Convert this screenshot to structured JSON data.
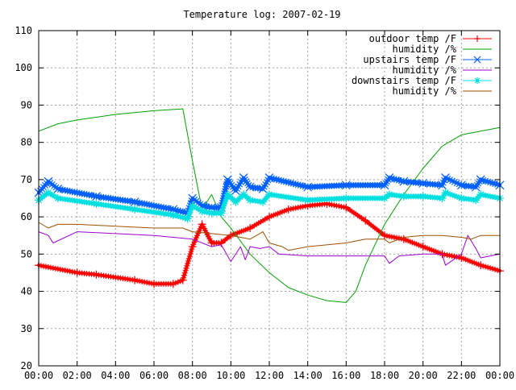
{
  "chart_data": {
    "type": "line",
    "title": "Temperature log: 2007-02-19",
    "xlabel": "",
    "ylabel": "",
    "x_range_hours": [
      0,
      24
    ],
    "xlim": [
      "00:00",
      "00:00"
    ],
    "ylim": [
      20,
      110
    ],
    "grid": true,
    "legend_position": "top-right",
    "x_ticks": [
      "00:00",
      "02:00",
      "04:00",
      "06:00",
      "08:00",
      "10:00",
      "12:00",
      "14:00",
      "16:00",
      "18:00",
      "20:00",
      "22:00",
      "00:00"
    ],
    "y_ticks": [
      20,
      30,
      40,
      50,
      60,
      70,
      80,
      90,
      100,
      110
    ],
    "series": [
      {
        "name": "outdoor temp /F",
        "color": "#ff0000",
        "marker": "plus",
        "x": [
          "00:00",
          "02:00",
          "03:00",
          "05:00",
          "06:00",
          "07:00",
          "07:30",
          "08:00",
          "08:30",
          "09:00",
          "09:30",
          "10:00",
          "11:00",
          "12:00",
          "13:00",
          "14:00",
          "15:00",
          "16:00",
          "17:00",
          "18:00",
          "19:00",
          "20:00",
          "21:00",
          "22:00",
          "23:00",
          "24:00"
        ],
        "values": [
          47,
          45,
          44.5,
          43,
          42,
          42,
          43,
          52,
          58,
          53,
          53,
          55,
          57,
          60,
          62,
          63,
          63.5,
          62.5,
          59,
          55,
          54,
          52,
          50,
          49,
          47,
          45.5
        ]
      },
      {
        "name": "humidity /%",
        "color": "#00a000",
        "marker": "none",
        "x": [
          "00:00",
          "01:00",
          "02:00",
          "04:00",
          "06:00",
          "07:30",
          "08:00",
          "08:30",
          "09:00",
          "09:30",
          "10:00",
          "11:00",
          "12:00",
          "13:00",
          "14:00",
          "15:00",
          "16:00",
          "16:30",
          "17:00",
          "18:00",
          "19:00",
          "20:00",
          "21:00",
          "22:00",
          "23:00",
          "24:00"
        ],
        "values": [
          83,
          85,
          86,
          87.5,
          88.5,
          89,
          75,
          62,
          66,
          60,
          57,
          50,
          45,
          41,
          39,
          37.5,
          37,
          40,
          47,
          58,
          66,
          73,
          79,
          82,
          83,
          84
        ]
      },
      {
        "name": "upstairs temp /F",
        "color": "#0060ff",
        "marker": "x",
        "x": [
          "00:00",
          "00:30",
          "01:00",
          "03:00",
          "05:00",
          "07:00",
          "07:45",
          "08:00",
          "08:30",
          "09:00",
          "09:30",
          "09:50",
          "10:15",
          "10:40",
          "11:00",
          "11:40",
          "12:00",
          "14:00",
          "16:00",
          "18:00",
          "18:15",
          "19:00",
          "20:00",
          "21:00",
          "21:10",
          "22:00",
          "22:45",
          "23:00",
          "24:00"
        ],
        "values": [
          66.5,
          69.5,
          67.5,
          65.5,
          64,
          62,
          61,
          65,
          63,
          62.5,
          62.5,
          70,
          67,
          70.5,
          68,
          67.5,
          70.5,
          68,
          68.5,
          68.5,
          70.5,
          69.5,
          69,
          68.5,
          70.5,
          68.5,
          68,
          70,
          68.5
        ]
      },
      {
        "name": "humidity /%",
        "color": "#a000d0",
        "marker": "none",
        "x": [
          "00:00",
          "00:30",
          "00:45",
          "02:00",
          "04:00",
          "06:00",
          "08:00",
          "09:00",
          "09:30",
          "10:00",
          "10:30",
          "10:45",
          "11:00",
          "11:30",
          "12:00",
          "12:30",
          "14:00",
          "16:00",
          "18:00",
          "18:15",
          "18:45",
          "20:00",
          "21:00",
          "21:10",
          "22:00",
          "22:20",
          "22:45",
          "23:00",
          "24:00"
        ],
        "values": [
          56,
          55,
          53,
          56,
          55.5,
          55,
          54,
          52,
          52.5,
          48,
          52,
          48.5,
          52,
          51.5,
          52,
          50,
          49.5,
          49.5,
          49.5,
          47.5,
          49.5,
          50,
          50,
          47,
          50,
          55,
          51.5,
          49,
          50
        ]
      },
      {
        "name": "downstairs temp /F",
        "color": "#00e0e0",
        "marker": "star",
        "x": [
          "00:00",
          "00:30",
          "01:00",
          "03:00",
          "05:00",
          "07:00",
          "07:45",
          "08:00",
          "08:30",
          "09:00",
          "09:30",
          "09:50",
          "10:15",
          "10:40",
          "11:00",
          "11:40",
          "12:00",
          "14:00",
          "16:00",
          "18:00",
          "18:15",
          "19:00",
          "20:00",
          "21:00",
          "21:10",
          "22:00",
          "22:45",
          "23:00",
          "24:00"
        ],
        "values": [
          64.5,
          66.5,
          65,
          63.5,
          62,
          60.5,
          59.5,
          63,
          61.5,
          61,
          61,
          66,
          64,
          66,
          64.5,
          64,
          66,
          64.5,
          65,
          65,
          66,
          65.5,
          65.5,
          65,
          66.5,
          65,
          64.5,
          66,
          65
        ]
      },
      {
        "name": "humidity /%",
        "color": "#a05000",
        "marker": "none",
        "x": [
          "00:00",
          "00:30",
          "01:00",
          "02:00",
          "04:00",
          "06:00",
          "07:30",
          "08:00",
          "09:00",
          "10:00",
          "11:00",
          "11:40",
          "12:00",
          "12:40",
          "13:00",
          "14:00",
          "16:00",
          "17:00",
          "18:00",
          "18:15",
          "19:00",
          "20:00",
          "21:00",
          "22:00",
          "22:30",
          "23:00",
          "24:00"
        ],
        "values": [
          58.5,
          57,
          58,
          58,
          57.5,
          57,
          57,
          56,
          55.5,
          55,
          54,
          56,
          53,
          52,
          51,
          52,
          53,
          54,
          54,
          53,
          54.5,
          55,
          55,
          54.5,
          54,
          55,
          55
        ]
      }
    ]
  }
}
